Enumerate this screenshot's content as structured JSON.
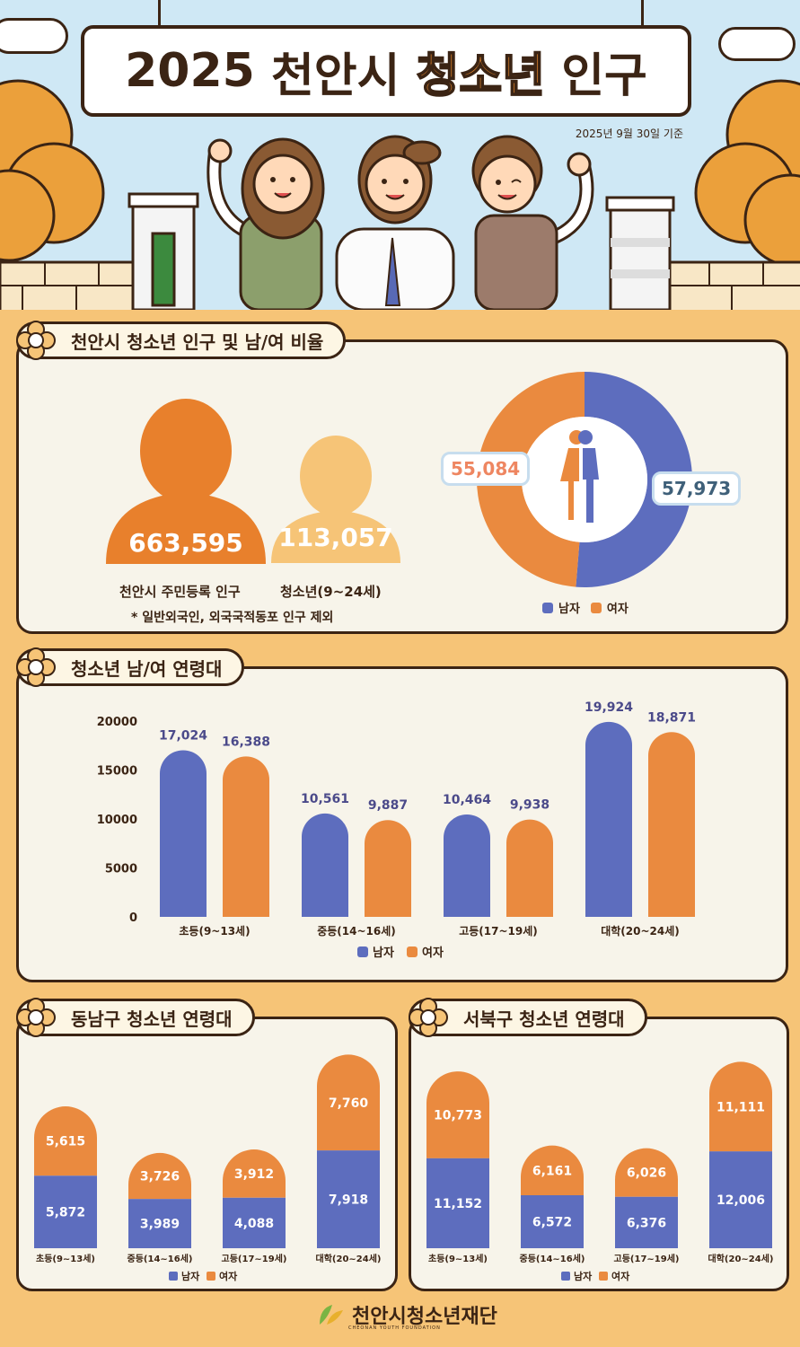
{
  "header": {
    "title_year": "2025",
    "title_city": "천안시",
    "title_highlight": "청소년",
    "title_tail": "인구",
    "ref_date": "2025년 9월 30일 기준"
  },
  "colors": {
    "male": "#5d6dbe",
    "female": "#ea8a3f",
    "accent": "#e98a2e",
    "ink": "#3b2414"
  },
  "population": {
    "section_title": "천안시 청소년 인구 및 남/여 비율",
    "total_value": "663,595",
    "total_label": "천안시 주민등록 인구",
    "youth_value": "113,057",
    "youth_label": "청소년(9~24세)",
    "note": "* 일반외국인, 외국국적동포 인구 제외",
    "male_value": "57,973",
    "female_value": "55,084",
    "legend_male": "남자",
    "legend_female": "여자"
  },
  "age_chart": {
    "section_title": "청소년 남/여 연령대"
  },
  "dongnam": {
    "section_title": "동남구 청소년 연령대"
  },
  "seobuk": {
    "section_title": "서북구 청소년 연령대"
  },
  "footer": {
    "logo_text": "천안시청소년재단",
    "logo_sub": "CHEONAN YOUTH FOUNDATION"
  },
  "chart_data": [
    {
      "type": "pie",
      "categories": [
        "남자",
        "여자"
      ],
      "values": [
        57973,
        55084
      ]
    },
    {
      "type": "bar",
      "categories": [
        "초등(9~13세)",
        "중등(14~16세)",
        "고등(17~19세)",
        "대학(20~24세)"
      ],
      "series": [
        {
          "name": "남자",
          "values": [
            17024,
            10561,
            10464,
            19924
          ]
        },
        {
          "name": "여자",
          "values": [
            16388,
            9887,
            9938,
            18871
          ]
        }
      ],
      "yticks": [
        0,
        5000,
        10000,
        15000,
        20000
      ],
      "ylim": [
        0,
        20000
      ],
      "legend": "bottom"
    },
    {
      "type": "bar",
      "stacked": true,
      "categories": [
        "초등(9~13세)",
        "중등(14~16세)",
        "고등(17~19세)",
        "대학(20~24세)"
      ],
      "series": [
        {
          "name": "남자",
          "values": [
            5872,
            3989,
            4088,
            7918
          ]
        },
        {
          "name": "여자",
          "values": [
            5615,
            3726,
            3912,
            7760
          ]
        }
      ],
      "legend": "bottom"
    },
    {
      "type": "bar",
      "stacked": true,
      "categories": [
        "초등(9~13세)",
        "중등(14~16세)",
        "고등(17~19세)",
        "대학(20~24세)"
      ],
      "series": [
        {
          "name": "남자",
          "values": [
            11152,
            6572,
            6376,
            12006
          ]
        },
        {
          "name": "여자",
          "values": [
            10773,
            6161,
            6026,
            11111
          ]
        }
      ],
      "legend": "bottom"
    }
  ]
}
